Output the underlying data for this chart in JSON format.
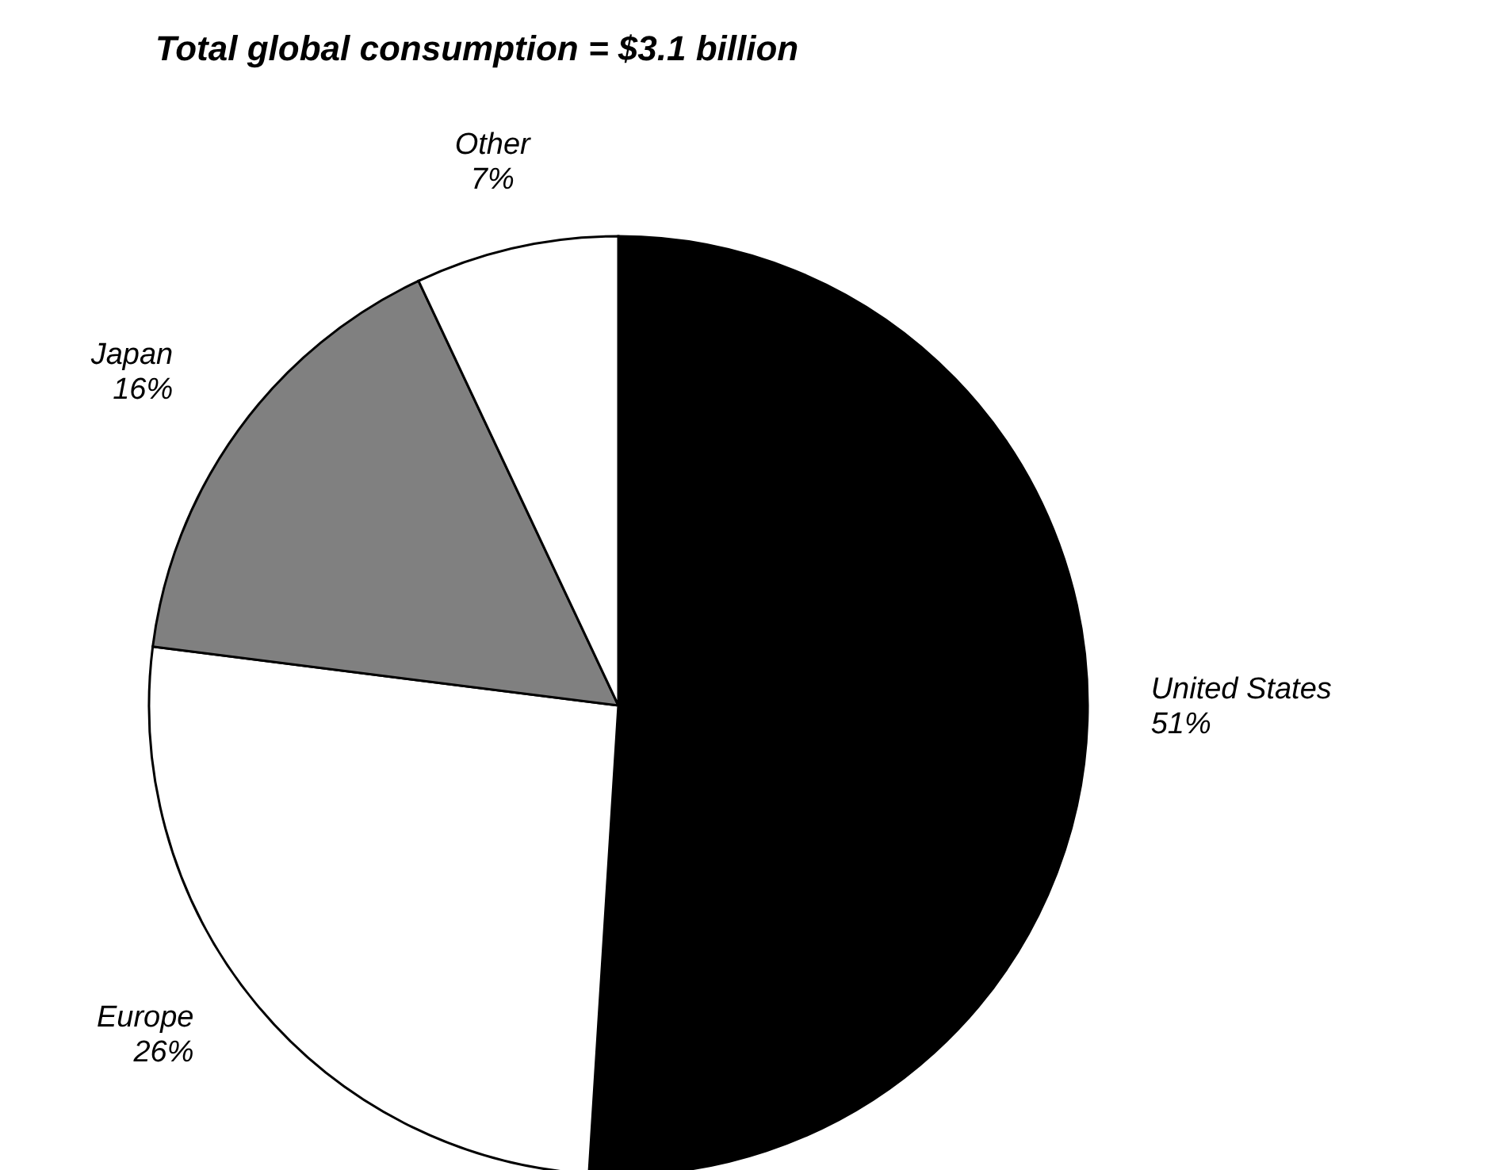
{
  "chart_data": {
    "type": "pie",
    "title": "Total global consumption = $3.1 billion",
    "categories": [
      "United States",
      "Europe",
      "Japan",
      "Other"
    ],
    "values": [
      51,
      26,
      16,
      7
    ],
    "colors": [
      "#000000",
      "#ffffff",
      "#808080",
      "#ffffff"
    ],
    "value_labels": [
      "51%",
      "26%",
      "16%",
      "7%"
    ],
    "legend": false
  }
}
